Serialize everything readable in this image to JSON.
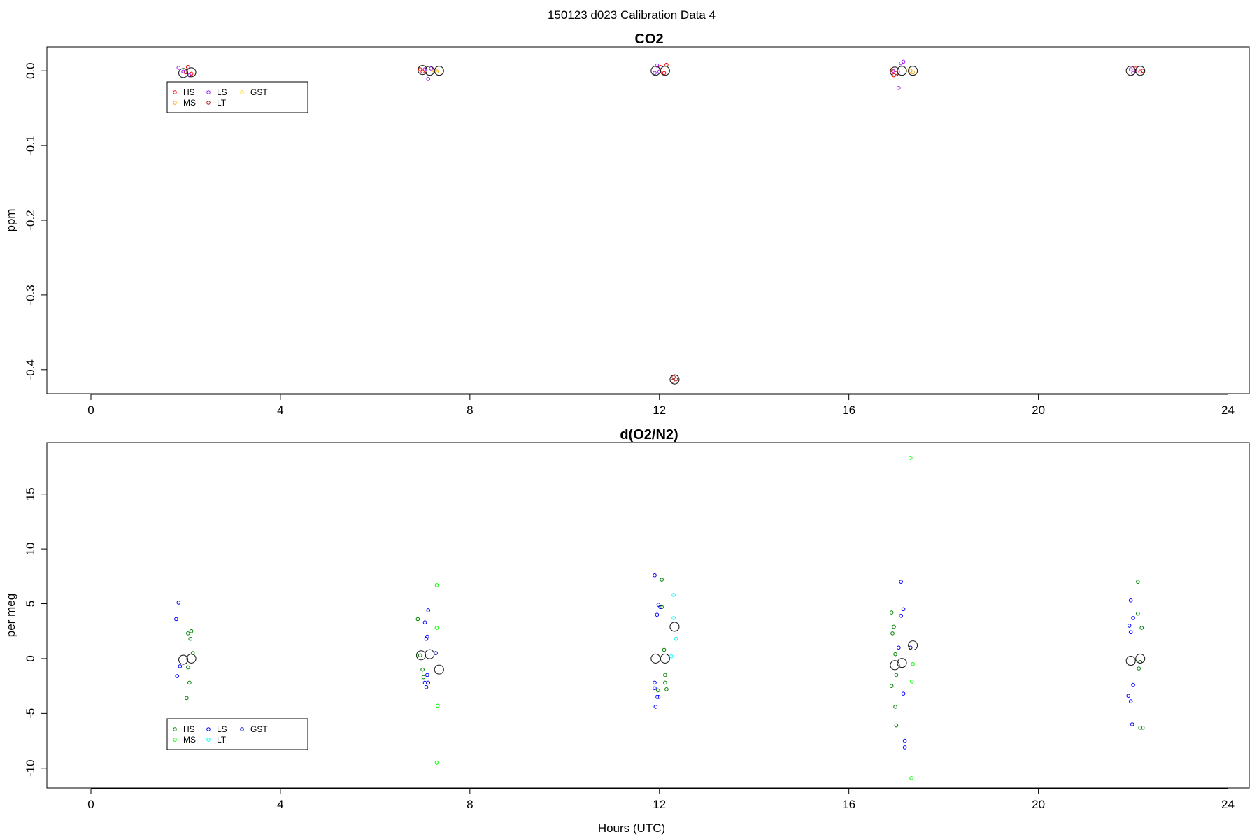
{
  "figure": {
    "suptitle": "150123   d023   Calibration Data 4",
    "xlabel": "Hours (UTC)"
  },
  "chart_data": [
    {
      "type": "scatter",
      "title": "CO2",
      "ylabel": "ppm",
      "xlabel": "",
      "xlim": [
        -0.93,
        24.45
      ],
      "ylim": [
        -0.432,
        0.032
      ],
      "xticks": [
        "0",
        "4",
        "8",
        "12",
        "16",
        "20",
        "24"
      ],
      "yticks": [
        "0.0",
        "-0.1",
        "-0.2",
        "-0.3",
        "-0.4"
      ],
      "grid": false,
      "legend": {
        "placement": "top-left",
        "entries": [
          "HS",
          "MS",
          "LS",
          "LT",
          "GST"
        ]
      },
      "series": [
        {
          "name": "HS",
          "color": "#ff0000",
          "points": [
            [
              2.0,
              -0.002
            ],
            [
              2.05,
              0.005
            ],
            [
              2.12,
              -0.004
            ],
            [
              6.95,
              0.002
            ],
            [
              7.0,
              -0.001
            ],
            [
              12.02,
              0.005
            ],
            [
              12.1,
              -0.003
            ],
            [
              12.15,
              0.008
            ],
            [
              16.9,
              0.001
            ],
            [
              16.95,
              -0.006
            ],
            [
              17.0,
              -0.003
            ],
            [
              22.05,
              0.003
            ],
            [
              22.15,
              -0.001
            ],
            [
              22.2,
              0.0
            ]
          ]
        },
        {
          "name": "MS",
          "color": "#ffa500",
          "points": [
            [
              7.25,
              0.0
            ],
            [
              7.3,
              -0.001
            ],
            [
              17.3,
              0.0
            ],
            [
              17.35,
              -0.002
            ]
          ]
        },
        {
          "name": "LS",
          "color": "#a020f0",
          "points": [
            [
              1.85,
              0.004
            ],
            [
              1.95,
              -0.001
            ],
            [
              2.08,
              -0.006
            ],
            [
              7.05,
              0.002
            ],
            [
              7.12,
              -0.011
            ],
            [
              7.18,
              0.003
            ],
            [
              11.9,
              -0.003
            ],
            [
              11.95,
              0.007
            ],
            [
              12.0,
              -0.001
            ],
            [
              16.93,
              0.0
            ],
            [
              17.05,
              -0.023
            ],
            [
              17.1,
              0.01
            ],
            [
              17.15,
              0.012
            ],
            [
              21.95,
              0.002
            ],
            [
              22.0,
              -0.003
            ],
            [
              22.05,
              0.0
            ]
          ]
        },
        {
          "name": "LT",
          "color": "#b22222",
          "points": [
            [
              12.3,
              -0.41
            ],
            [
              12.35,
              -0.413
            ],
            [
              12.28,
              -0.415
            ]
          ]
        },
        {
          "name": "GST",
          "color": "#ffd700",
          "points": [
            [
              7.28,
              0.001
            ],
            [
              17.25,
              0.001
            ]
          ]
        },
        {
          "name": "",
          "color": "#222222",
          "marker": "large-circle",
          "points": [
            [
              1.95,
              -0.003
            ],
            [
              2.12,
              -0.002
            ],
            [
              7.0,
              0.001
            ],
            [
              7.15,
              0.0
            ],
            [
              7.35,
              0.0
            ],
            [
              11.92,
              0.0
            ],
            [
              12.12,
              0.0
            ],
            [
              12.32,
              -0.413
            ],
            [
              16.97,
              -0.001
            ],
            [
              17.12,
              0.0
            ],
            [
              17.35,
              0.0
            ],
            [
              21.95,
              0.0
            ],
            [
              22.15,
              0.0
            ]
          ]
        }
      ]
    },
    {
      "type": "scatter",
      "title": "d(O2/N2)",
      "ylabel": "per meg",
      "xlabel": "Hours (UTC)",
      "xlim": [
        -0.93,
        24.45
      ],
      "ylim": [
        -11.8,
        19.7
      ],
      "xticks": [
        "0",
        "4",
        "8",
        "12",
        "16",
        "20",
        "24"
      ],
      "yticks": [
        "-10",
        "-5",
        "0",
        "5",
        "10",
        "15"
      ],
      "grid": false,
      "legend": {
        "placement": "bottom-left",
        "entries": [
          "HS",
          "MS",
          "LS",
          "LT",
          "GST"
        ]
      },
      "series": [
        {
          "name": "HS",
          "color": "#008000",
          "points": [
            [
              2.05,
              2.3
            ],
            [
              2.12,
              2.5
            ],
            [
              2.1,
              1.8
            ],
            [
              2.15,
              0.5
            ],
            [
              2.05,
              -0.8
            ],
            [
              2.08,
              -2.2
            ],
            [
              2.02,
              -3.6
            ],
            [
              6.9,
              3.6
            ],
            [
              6.95,
              0.3
            ],
            [
              7.0,
              -1.0
            ],
            [
              7.02,
              -1.7
            ],
            [
              11.97,
              -2.9
            ],
            [
              12.05,
              7.2
            ],
            [
              12.05,
              4.7
            ],
            [
              12.1,
              0.8
            ],
            [
              12.12,
              -1.5
            ],
            [
              12.15,
              -2.8
            ],
            [
              12.12,
              -2.2
            ],
            [
              16.9,
              4.2
            ],
            [
              16.95,
              2.9
            ],
            [
              16.92,
              2.3
            ],
            [
              16.98,
              0.4
            ],
            [
              17.0,
              -1.5
            ],
            [
              16.9,
              -2.5
            ],
            [
              16.98,
              -4.4
            ],
            [
              17.0,
              -6.1
            ],
            [
              22.1,
              4.1
            ],
            [
              22.12,
              -0.9
            ],
            [
              22.15,
              -0.3
            ],
            [
              22.18,
              2.8
            ],
            [
              22.15,
              -6.3
            ],
            [
              22.2,
              -6.3
            ],
            [
              22.1,
              7.0
            ]
          ]
        },
        {
          "name": "MS",
          "color": "#00ff00",
          "points": [
            [
              7.3,
              6.7
            ],
            [
              7.3,
              2.8
            ],
            [
              7.32,
              -4.3
            ],
            [
              7.3,
              -9.5
            ],
            [
              17.3,
              18.3
            ],
            [
              17.35,
              -0.5
            ],
            [
              17.33,
              -2.1
            ],
            [
              17.32,
              -10.9
            ]
          ]
        },
        {
          "name": "LS",
          "color": "#0000ff",
          "points": [
            [
              1.85,
              5.1
            ],
            [
              1.8,
              3.6
            ],
            [
              1.88,
              -0.7
            ],
            [
              1.82,
              -1.6
            ],
            [
              7.05,
              3.3
            ],
            [
              7.12,
              4.4
            ],
            [
              7.1,
              2.0
            ],
            [
              7.08,
              1.8
            ],
            [
              7.1,
              -1.5
            ],
            [
              7.05,
              -2.2
            ],
            [
              7.12,
              -2.2
            ],
            [
              7.08,
              -2.6
            ],
            [
              11.9,
              7.6
            ],
            [
              11.98,
              4.9
            ],
            [
              12.02,
              4.7
            ],
            [
              11.95,
              4.0
            ],
            [
              11.9,
              -2.2
            ],
            [
              11.9,
              -2.7
            ],
            [
              11.95,
              -3.5
            ],
            [
              11.98,
              -3.5
            ],
            [
              11.92,
              -4.4
            ],
            [
              17.1,
              7.0
            ],
            [
              17.15,
              4.5
            ],
            [
              17.1,
              3.9
            ],
            [
              17.05,
              1.0
            ],
            [
              17.15,
              -3.2
            ],
            [
              17.18,
              -7.5
            ],
            [
              17.18,
              -8.1
            ],
            [
              21.95,
              5.3
            ],
            [
              22.0,
              3.7
            ],
            [
              21.92,
              3.0
            ],
            [
              21.95,
              2.4
            ],
            [
              22.0,
              -2.4
            ],
            [
              21.9,
              -3.4
            ],
            [
              21.95,
              -3.9
            ],
            [
              21.98,
              -6.0
            ]
          ]
        },
        {
          "name": "LT",
          "color": "#00ffff",
          "points": [
            [
              12.3,
              5.8
            ],
            [
              12.3,
              3.7
            ],
            [
              12.35,
              1.8
            ],
            [
              12.25,
              0.2
            ]
          ]
        },
        {
          "name": "GST",
          "color": "#0000cd",
          "points": [
            [
              7.28,
              0.5
            ],
            [
              17.3,
              1.0
            ]
          ]
        },
        {
          "name": "",
          "color": "#222222",
          "marker": "large-circle",
          "points": [
            [
              1.95,
              -0.1
            ],
            [
              2.12,
              0.0
            ],
            [
              6.97,
              0.3
            ],
            [
              7.15,
              0.4
            ],
            [
              7.35,
              -1.0
            ],
            [
              11.92,
              0.0
            ],
            [
              12.12,
              0.0
            ],
            [
              12.32,
              2.9
            ],
            [
              16.97,
              -0.6
            ],
            [
              17.12,
              -0.4
            ],
            [
              17.35,
              1.2
            ],
            [
              21.95,
              -0.2
            ],
            [
              22.15,
              0.0
            ]
          ]
        }
      ]
    }
  ]
}
